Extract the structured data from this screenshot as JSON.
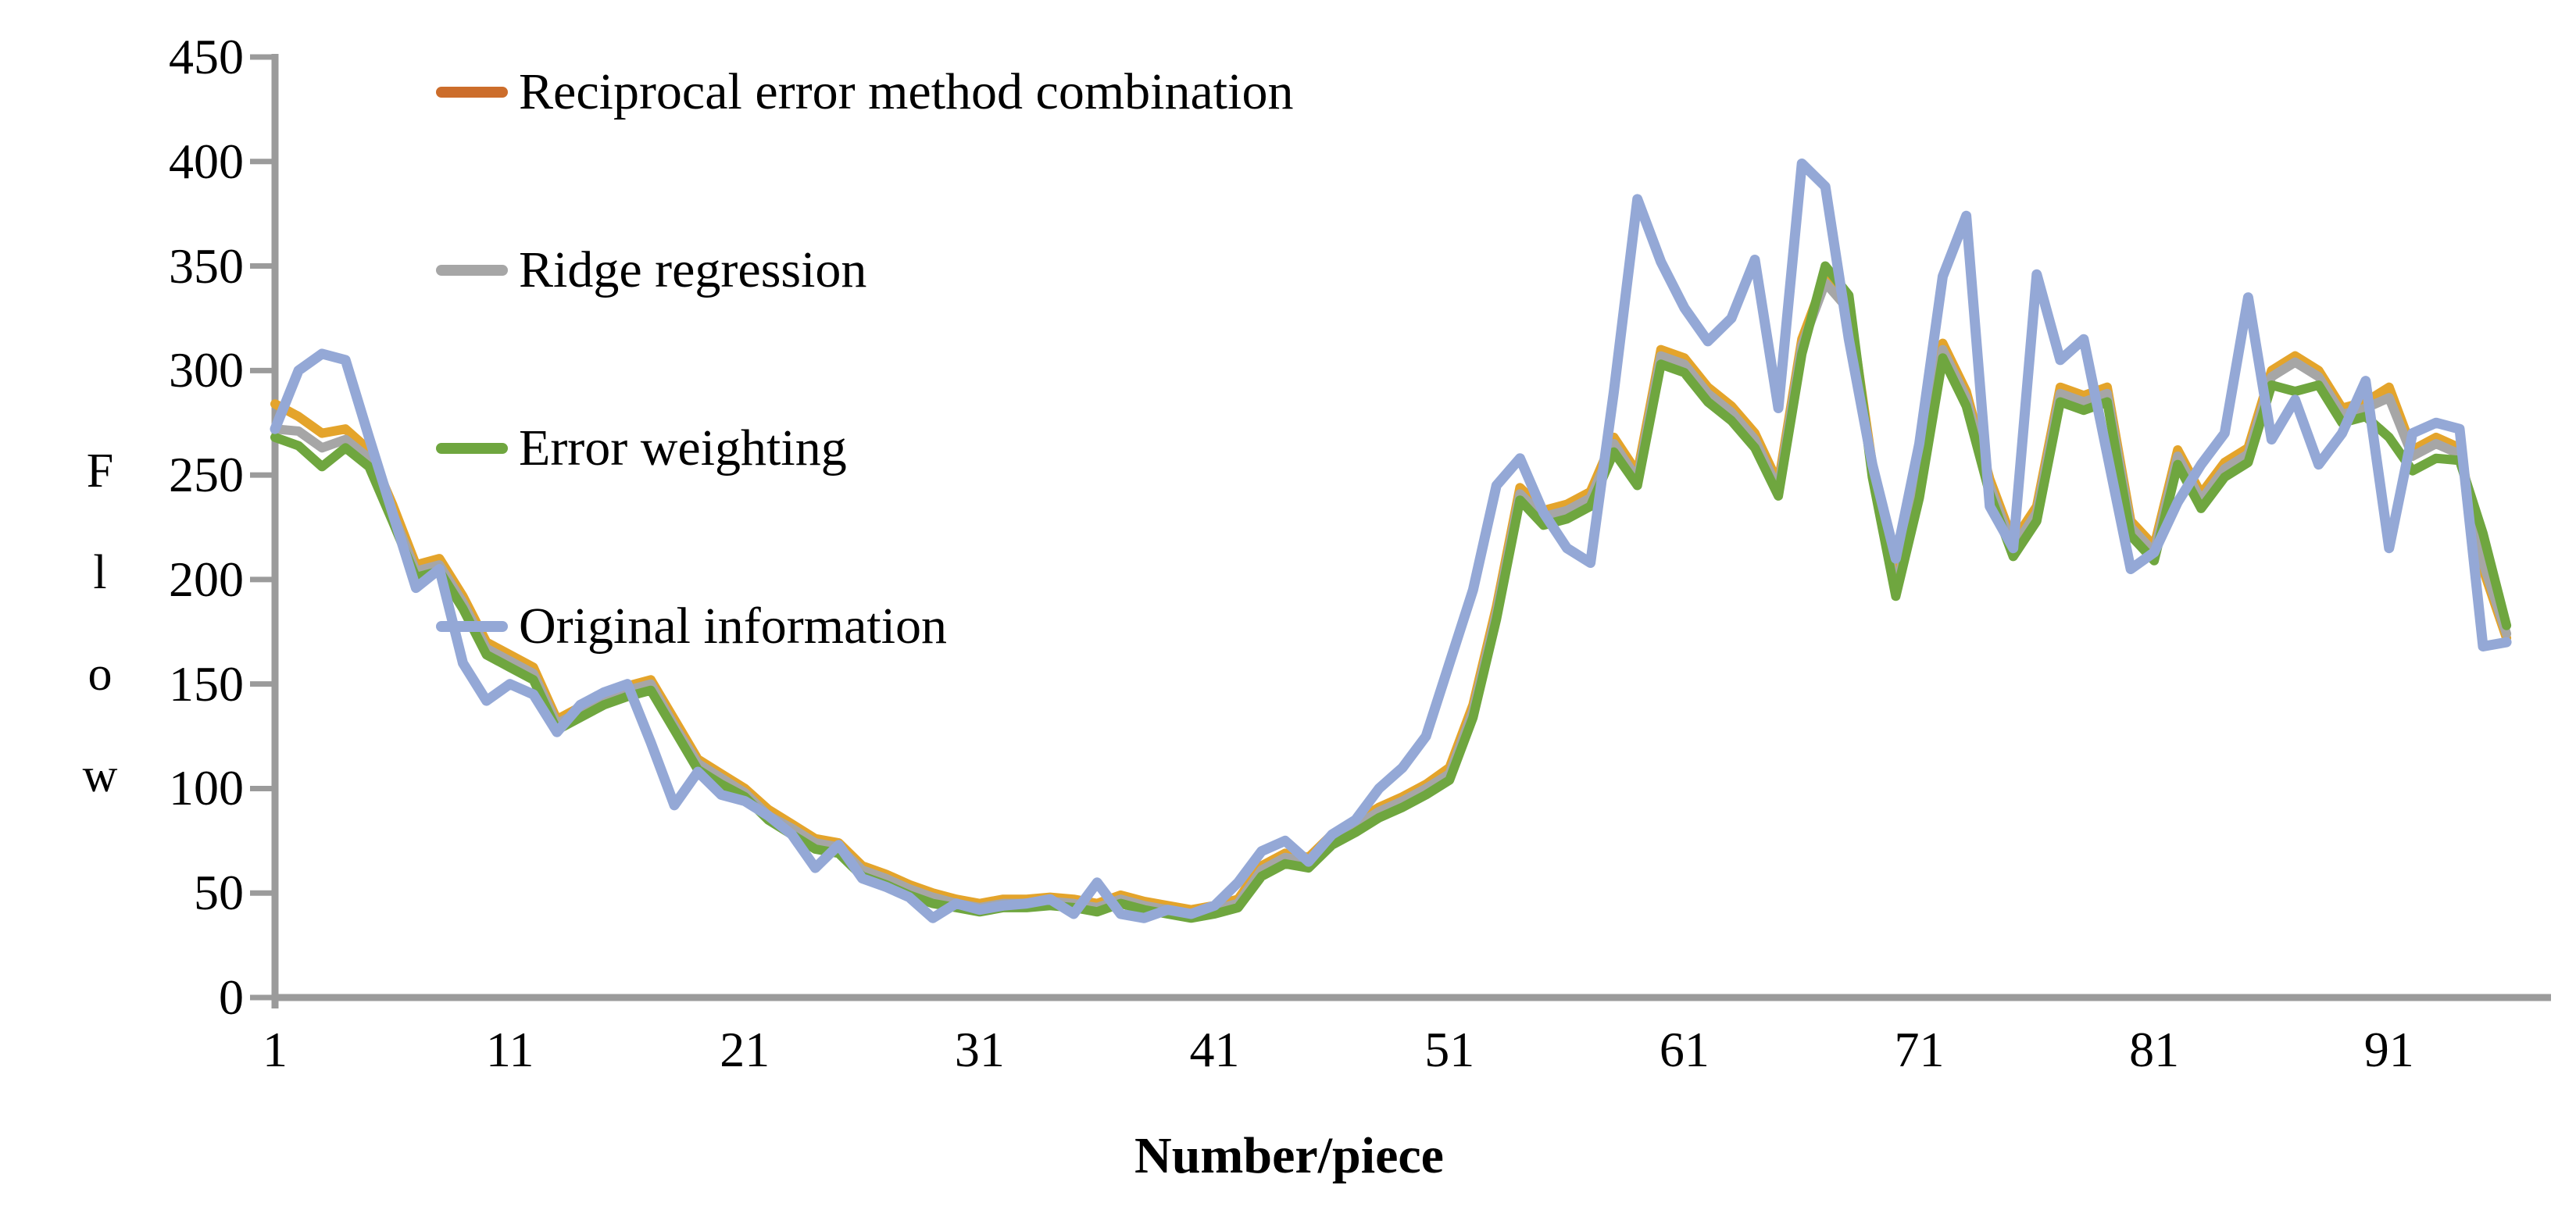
{
  "chart_data": {
    "type": "line",
    "title": "",
    "xlabel": "Number/piece",
    "ylabel": "Flow",
    "ylabel_letters": [
      "F",
      "l",
      "o",
      "w"
    ],
    "x_start": 1,
    "x_count": 96,
    "x_ticks": [
      1,
      11,
      21,
      31,
      41,
      51,
      61,
      71,
      81,
      91
    ],
    "y_ticks": [
      0,
      50,
      100,
      150,
      200,
      250,
      300,
      350,
      400,
      450
    ],
    "ylim": [
      0,
      450
    ],
    "xlim": [
      1,
      96
    ],
    "grid": false,
    "legend_position": "top-left-inside",
    "axis_color": "#9B9B9B",
    "series": [
      {
        "name": "Reciprocal error method combination",
        "color": "#CC6D2B",
        "plot_color": "#E4A42B",
        "values": [
          284,
          278,
          270,
          272,
          262,
          236,
          207,
          210,
          192,
          170,
          164,
          158,
          133,
          139,
          145,
          149,
          152,
          133,
          114,
          107,
          100,
          90,
          83,
          76,
          74,
          63,
          59,
          54,
          50,
          47,
          45,
          47,
          47,
          48,
          47,
          45,
          49,
          46,
          44,
          42,
          44,
          47,
          63,
          69,
          67,
          78,
          84,
          91,
          96,
          102,
          110,
          140,
          187,
          244,
          233,
          236,
          242,
          268,
          251,
          310,
          306,
          292,
          283,
          270,
          246,
          315,
          345,
          332,
          255,
          198,
          245,
          313,
          290,
          248,
          218,
          235,
          292,
          288,
          292,
          228,
          216,
          262,
          241,
          256,
          263,
          300,
          307,
          300,
          282,
          285,
          292,
          262,
          268,
          263,
          205,
          172
        ]
      },
      {
        "name": "Ridge regression",
        "color": "#A6A6A6",
        "plot_color": "#A6A6A6",
        "values": [
          272,
          271,
          263,
          267,
          258,
          232,
          204,
          207,
          189,
          167,
          161,
          155,
          131,
          137,
          143,
          147,
          150,
          130,
          112,
          105,
          98,
          87,
          81,
          74,
          72,
          61,
          57,
          52,
          48,
          45,
          43,
          45,
          45,
          46,
          45,
          43,
          47,
          44,
          42,
          40,
          42,
          45,
          61,
          67,
          65,
          76,
          82,
          89,
          94,
          100,
          107,
          137,
          184,
          241,
          230,
          233,
          239,
          265,
          248,
          307,
          303,
          289,
          280,
          267,
          243,
          312,
          342,
          329,
          252,
          195,
          242,
          310,
          287,
          245,
          215,
          232,
          289,
          285,
          289,
          225,
          213,
          259,
          238,
          253,
          260,
          297,
          304,
          297,
          279,
          282,
          287,
          259,
          265,
          260,
          208,
          174
        ]
      },
      {
        "name": "Error weighting",
        "color": "#6FA63F",
        "plot_color": "#6FA63F",
        "values": [
          268,
          264,
          254,
          263,
          254,
          228,
          201,
          204,
          186,
          164,
          158,
          152,
          128,
          134,
          140,
          144,
          147,
          128,
          109,
          102,
          96,
          85,
          78,
          71,
          69,
          58,
          54,
          49,
          45,
          43,
          41,
          43,
          43,
          44,
          43,
          41,
          45,
          42,
          40,
          38,
          40,
          43,
          58,
          64,
          62,
          73,
          79,
          86,
          91,
          97,
          104,
          134,
          181,
          238,
          226,
          229,
          235,
          261,
          245,
          303,
          299,
          285,
          276,
          263,
          240,
          308,
          350,
          336,
          249,
          192,
          239,
          306,
          283,
          241,
          211,
          228,
          285,
          281,
          285,
          221,
          209,
          255,
          234,
          249,
          256,
          293,
          290,
          293,
          275,
          278,
          268,
          252,
          258,
          257,
          222,
          178
        ]
      },
      {
        "name": "Original information",
        "color": "#94A8D6",
        "plot_color": "#94A8D6",
        "values": [
          272,
          300,
          308,
          305,
          268,
          232,
          196,
          205,
          160,
          142,
          150,
          145,
          127,
          140,
          146,
          150,
          122,
          92,
          108,
          97,
          94,
          87,
          78,
          62,
          73,
          57,
          53,
          48,
          38,
          45,
          42,
          44,
          45,
          47,
          40,
          55,
          40,
          38,
          42,
          40,
          44,
          55,
          70,
          75,
          65,
          78,
          85,
          100,
          110,
          125,
          160,
          195,
          245,
          258,
          232,
          215,
          208,
          290,
          382,
          352,
          330,
          314,
          325,
          353,
          282,
          399,
          388,
          315,
          255,
          210,
          265,
          345,
          374,
          235,
          215,
          346,
          305,
          315,
          260,
          205,
          213,
          237,
          255,
          270,
          335,
          267,
          286,
          255,
          270,
          295,
          215,
          270,
          275,
          272,
          168,
          170
        ]
      }
    ]
  }
}
